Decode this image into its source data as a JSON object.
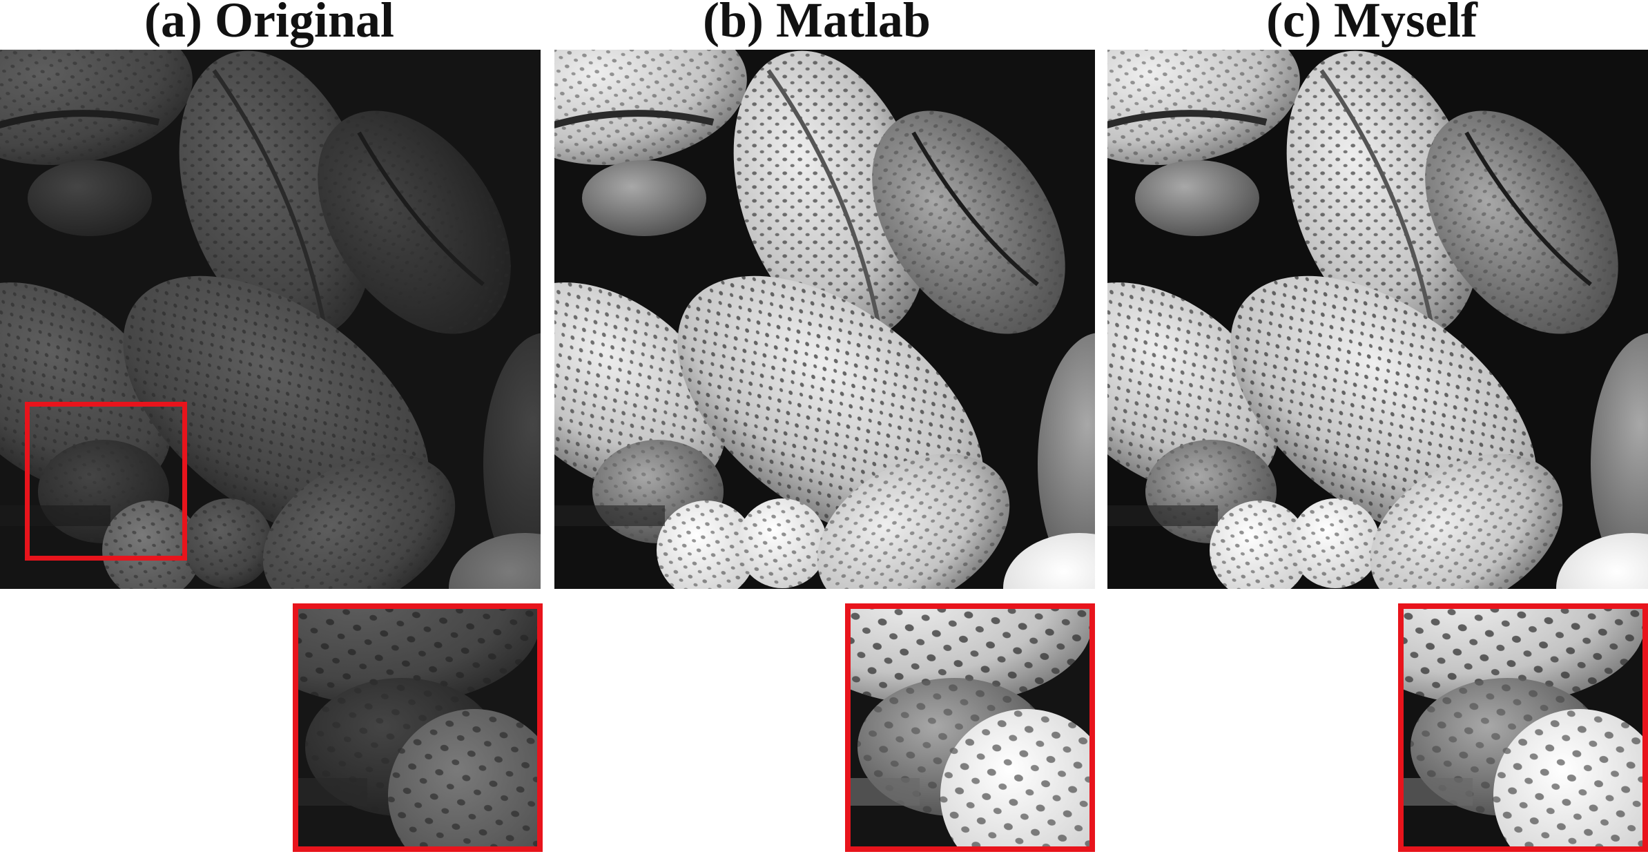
{
  "figure": {
    "panels": [
      {
        "id": "original",
        "title": "(a) Original",
        "tone": "dark"
      },
      {
        "id": "matlab",
        "title": "(b) Matlab",
        "tone": "bright"
      },
      {
        "id": "myself",
        "title": "(c) Myself",
        "tone": "bright"
      }
    ],
    "roi_color": "#e8141c",
    "image_subject": "pollen-grains-micrograph"
  }
}
